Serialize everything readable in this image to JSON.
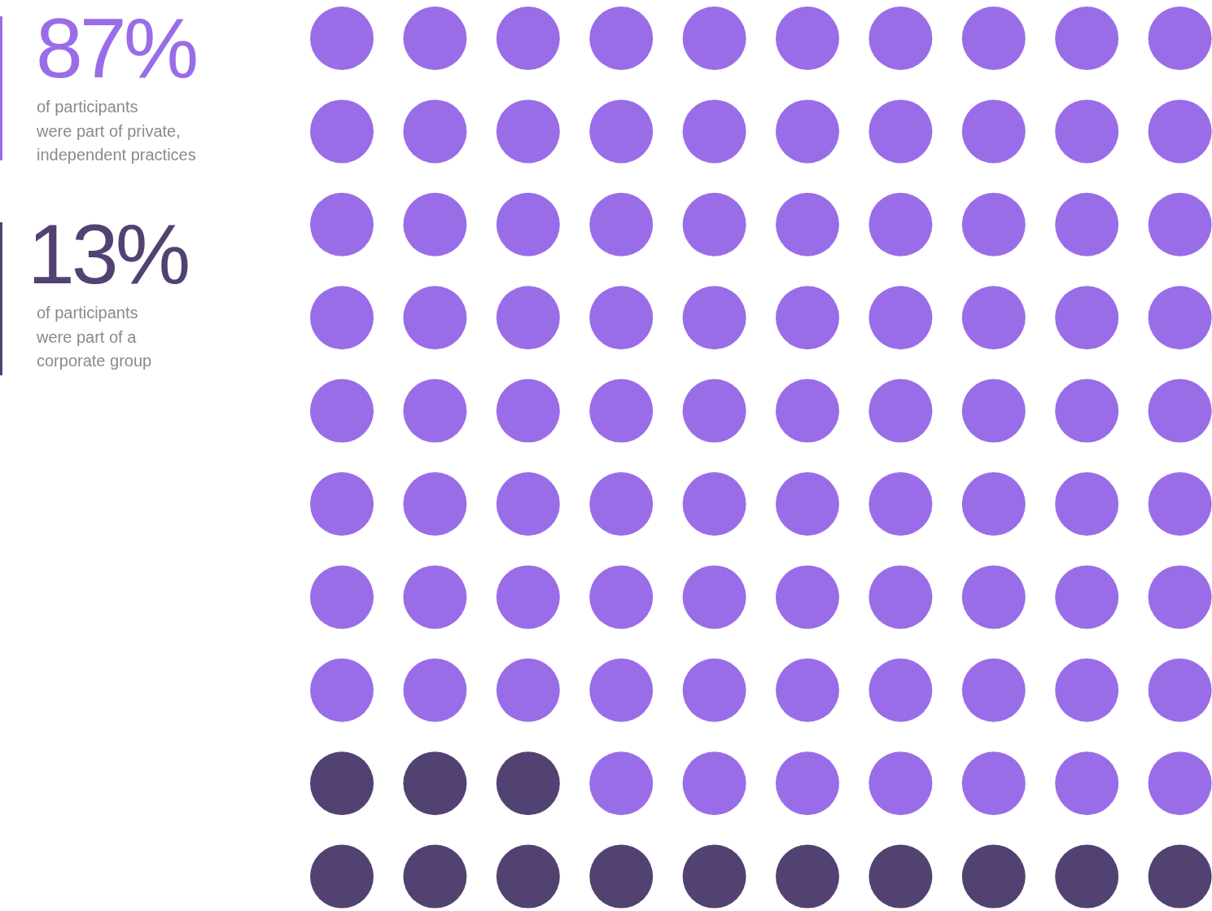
{
  "chart_data": {
    "type": "other",
    "categories": [
      "of participants\nwere part of private,\nindependent practices",
      "of participants\nwere part of a\ncorporate group"
    ],
    "values": [
      87,
      13
    ],
    "colors": [
      "#9a6de8",
      "#524272"
    ],
    "value_labels": [
      "87%",
      "13%"
    ]
  }
}
